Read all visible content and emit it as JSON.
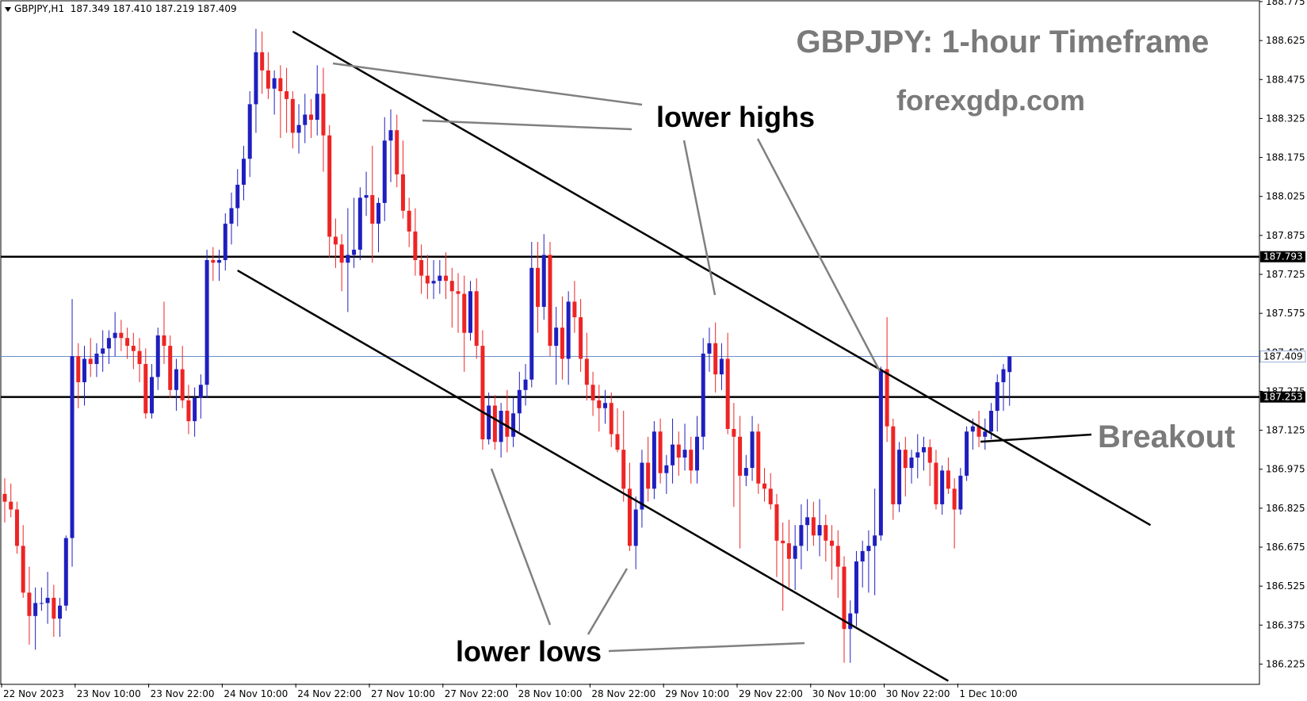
{
  "header": {
    "symbol_info": "GBPJPY,H1",
    "ohlc": "187.349 187.410 187.219 187.409"
  },
  "annotations": {
    "title": "GBPJPY: 1-hour Timeframe",
    "site": "forexgdp.com",
    "lower_highs": "lower highs",
    "lower_lows": "lower lows",
    "breakout": "Breakout"
  },
  "chart_data": {
    "type": "candlestick",
    "symbol": "GBPJPY",
    "timeframe": "H1",
    "ylim": [
      186.15,
      188.775
    ],
    "y_ticks": [
      "188.775",
      "188.625",
      "188.475",
      "188.325",
      "188.175",
      "188.025",
      "187.875",
      "187.725",
      "187.575",
      "187.425",
      "187.275",
      "187.125",
      "186.975",
      "186.825",
      "186.675",
      "186.525",
      "186.375",
      "186.225"
    ],
    "x_ticks": [
      "22 Nov 2023",
      "23 Nov 10:00",
      "23 Nov 22:00",
      "24 Nov 10:00",
      "24 Nov 22:00",
      "27 Nov 10:00",
      "27 Nov 22:00",
      "28 Nov 10:00",
      "28 Nov 22:00",
      "29 Nov 10:00",
      "29 Nov 22:00",
      "30 Nov 10:00",
      "30 Nov 22:00",
      "1 Dec 10:00"
    ],
    "horizontal_levels": [
      {
        "value": 187.793,
        "label": "187.793"
      },
      {
        "value": 187.253,
        "label": "187.253"
      }
    ],
    "current_price": {
      "value": 187.409,
      "label": "187.409"
    },
    "channel_lines": [
      {
        "name": "upper",
        "from": {
          "bar": 47,
          "price": 188.66
        },
        "to": {
          "bar": 187,
          "price": 186.76
        }
      },
      {
        "name": "lower",
        "from": {
          "bar": 38,
          "price": 187.74
        },
        "to": {
          "bar": 154,
          "price": 186.16
        }
      }
    ],
    "colors": {
      "bull": "#1f1fbf",
      "bear": "#ee2424",
      "level": "#000000",
      "current": "#6b8fc6",
      "annotation": "#7a7a7a"
    },
    "candles": [
      [
        186.88,
        186.94,
        186.77,
        186.85
      ],
      [
        186.85,
        186.92,
        186.79,
        186.82
      ],
      [
        186.82,
        186.85,
        186.65,
        186.68
      ],
      [
        186.68,
        186.76,
        186.48,
        186.5
      ],
      [
        186.5,
        186.6,
        186.3,
        186.41
      ],
      [
        186.41,
        186.52,
        186.28,
        186.46
      ],
      [
        186.46,
        186.52,
        186.43,
        186.46
      ],
      [
        186.46,
        186.58,
        186.38,
        186.48
      ],
      [
        186.48,
        186.53,
        186.33,
        186.4
      ],
      [
        186.4,
        186.48,
        186.33,
        186.45
      ],
      [
        186.45,
        186.72,
        186.43,
        186.71
      ],
      [
        186.71,
        187.63,
        186.6,
        187.41
      ],
      [
        187.41,
        187.46,
        187.21,
        187.31
      ],
      [
        187.31,
        187.45,
        187.22,
        187.4
      ],
      [
        187.4,
        187.48,
        187.33,
        187.38
      ],
      [
        187.38,
        187.46,
        187.33,
        187.42
      ],
      [
        187.42,
        187.51,
        187.35,
        187.44
      ],
      [
        187.44,
        187.51,
        187.38,
        187.48
      ],
      [
        187.48,
        187.58,
        187.41,
        187.5
      ],
      [
        187.5,
        187.55,
        187.43,
        187.48
      ],
      [
        187.48,
        187.52,
        187.4,
        187.45
      ],
      [
        187.45,
        187.5,
        187.36,
        187.43
      ],
      [
        187.43,
        187.48,
        187.31,
        187.38
      ],
      [
        187.38,
        187.44,
        187.17,
        187.19
      ],
      [
        187.19,
        187.38,
        187.17,
        187.33
      ],
      [
        187.33,
        187.52,
        187.28,
        187.49
      ],
      [
        187.49,
        187.62,
        187.38,
        187.45
      ],
      [
        187.45,
        187.49,
        187.25,
        187.28
      ],
      [
        187.28,
        187.4,
        187.2,
        187.36
      ],
      [
        187.36,
        187.45,
        187.21,
        187.24
      ],
      [
        187.24,
        187.3,
        187.11,
        187.16
      ],
      [
        187.16,
        187.29,
        187.1,
        187.25
      ],
      [
        187.25,
        187.34,
        187.17,
        187.3
      ],
      [
        187.3,
        187.82,
        187.25,
        187.78
      ],
      [
        187.78,
        187.83,
        187.7,
        187.77
      ],
      [
        187.77,
        187.82,
        187.7,
        187.78
      ],
      [
        187.78,
        187.96,
        187.74,
        187.92
      ],
      [
        187.92,
        188.04,
        187.84,
        187.98
      ],
      [
        187.98,
        188.13,
        187.91,
        188.07
      ],
      [
        188.07,
        188.22,
        188.01,
        188.17
      ],
      [
        188.17,
        188.43,
        188.1,
        188.38
      ],
      [
        188.38,
        188.67,
        188.27,
        188.58
      ],
      [
        188.58,
        188.66,
        188.42,
        188.51
      ],
      [
        188.51,
        188.58,
        188.4,
        188.44
      ],
      [
        188.44,
        188.51,
        188.34,
        188.48
      ],
      [
        188.48,
        188.53,
        188.25,
        188.43
      ],
      [
        188.43,
        188.52,
        188.27,
        188.4
      ],
      [
        188.4,
        188.43,
        188.21,
        188.27
      ],
      [
        188.27,
        188.38,
        188.19,
        188.3
      ],
      [
        188.3,
        188.42,
        188.23,
        188.34
      ],
      [
        188.34,
        188.4,
        188.25,
        188.32
      ],
      [
        188.32,
        188.53,
        188.26,
        188.42
      ],
      [
        188.42,
        188.52,
        188.12,
        188.26
      ],
      [
        188.26,
        188.3,
        187.79,
        187.87
      ],
      [
        187.87,
        187.94,
        187.75,
        187.84
      ],
      [
        187.84,
        187.88,
        187.66,
        187.77
      ],
      [
        187.77,
        187.98,
        187.58,
        187.8
      ],
      [
        187.8,
        188.02,
        187.75,
        187.82
      ],
      [
        187.82,
        188.06,
        187.78,
        188.02
      ],
      [
        188.02,
        188.12,
        187.95,
        188.03
      ],
      [
        188.03,
        188.22,
        187.77,
        187.92
      ],
      [
        187.92,
        188.02,
        187.81,
        188.0
      ],
      [
        188.0,
        188.33,
        187.93,
        188.24
      ],
      [
        188.24,
        188.36,
        188.08,
        188.28
      ],
      [
        188.28,
        188.34,
        188.06,
        188.11
      ],
      [
        188.11,
        188.24,
        187.94,
        187.97
      ],
      [
        187.97,
        188.02,
        187.83,
        187.89
      ],
      [
        187.89,
        187.98,
        187.72,
        187.78
      ],
      [
        187.78,
        187.84,
        187.65,
        187.72
      ],
      [
        187.72,
        187.8,
        187.63,
        187.69
      ],
      [
        187.69,
        187.78,
        187.63,
        187.7
      ],
      [
        187.7,
        187.78,
        187.65,
        187.72
      ],
      [
        187.72,
        187.81,
        187.63,
        187.7
      ],
      [
        187.7,
        187.75,
        187.52,
        187.66
      ],
      [
        187.66,
        187.73,
        187.5,
        187.65
      ],
      [
        187.65,
        187.72,
        187.35,
        187.5
      ],
      [
        187.5,
        187.7,
        187.47,
        187.66
      ],
      [
        187.66,
        187.71,
        187.4,
        187.45
      ],
      [
        187.45,
        187.51,
        187.05,
        187.09
      ],
      [
        187.09,
        187.27,
        187.07,
        187.22
      ],
      [
        187.22,
        187.26,
        187.05,
        187.08
      ],
      [
        187.08,
        187.23,
        187.02,
        187.2
      ],
      [
        187.2,
        187.28,
        187.04,
        187.1
      ],
      [
        187.1,
        187.25,
        187.06,
        187.19
      ],
      [
        187.19,
        187.35,
        187.12,
        187.28
      ],
      [
        187.28,
        187.38,
        187.22,
        187.32
      ],
      [
        187.32,
        187.85,
        187.29,
        187.75
      ],
      [
        187.75,
        187.85,
        187.5,
        187.6
      ],
      [
        187.6,
        187.88,
        187.55,
        187.8
      ],
      [
        187.8,
        187.85,
        187.41,
        187.45
      ],
      [
        187.45,
        187.6,
        187.3,
        187.52
      ],
      [
        187.52,
        187.64,
        187.32,
        187.4
      ],
      [
        187.4,
        187.66,
        187.3,
        187.62
      ],
      [
        187.62,
        187.7,
        187.5,
        187.56
      ],
      [
        187.56,
        187.63,
        187.35,
        187.4
      ],
      [
        187.4,
        187.5,
        187.24,
        187.3
      ],
      [
        187.3,
        187.35,
        187.18,
        187.24
      ],
      [
        187.24,
        187.3,
        187.12,
        187.21
      ],
      [
        187.21,
        187.28,
        187.15,
        187.23
      ],
      [
        187.23,
        187.27,
        187.06,
        187.11
      ],
      [
        187.11,
        187.21,
        187.04,
        187.05
      ],
      [
        187.05,
        187.2,
        186.85,
        186.9
      ],
      [
        186.9,
        187.0,
        186.66,
        186.68
      ],
      [
        186.68,
        186.87,
        186.59,
        186.82
      ],
      [
        186.82,
        187.05,
        186.75,
        187.0
      ],
      [
        187.0,
        187.1,
        186.85,
        186.9
      ],
      [
        186.9,
        187.16,
        186.86,
        187.12
      ],
      [
        187.12,
        187.17,
        186.92,
        186.96
      ],
      [
        186.96,
        187.03,
        186.88,
        186.99
      ],
      [
        186.99,
        187.17,
        186.92,
        187.07
      ],
      [
        187.07,
        187.12,
        186.95,
        187.02
      ],
      [
        187.02,
        187.15,
        186.97,
        187.05
      ],
      [
        187.05,
        187.1,
        186.92,
        186.97
      ],
      [
        186.97,
        187.18,
        186.92,
        187.1
      ],
      [
        187.1,
        187.48,
        187.05,
        187.42
      ],
      [
        187.42,
        187.52,
        187.35,
        187.46
      ],
      [
        187.46,
        187.54,
        187.27,
        187.34
      ],
      [
        187.34,
        187.46,
        187.28,
        187.4
      ],
      [
        187.4,
        187.5,
        187.11,
        187.13
      ],
      [
        187.13,
        187.23,
        186.83,
        187.1
      ],
      [
        187.1,
        187.18,
        186.67,
        186.95
      ],
      [
        186.95,
        187.03,
        186.91,
        186.98
      ],
      [
        186.98,
        187.18,
        186.93,
        187.12
      ],
      [
        187.12,
        187.15,
        186.88,
        186.92
      ],
      [
        186.92,
        186.98,
        186.85,
        186.9
      ],
      [
        186.9,
        186.96,
        186.82,
        186.84
      ],
      [
        186.84,
        186.88,
        186.56,
        186.7
      ],
      [
        186.7,
        186.77,
        186.43,
        186.69
      ],
      [
        186.69,
        186.78,
        186.52,
        186.63
      ],
      [
        186.63,
        186.76,
        186.51,
        186.68
      ],
      [
        186.68,
        186.84,
        186.59,
        186.76
      ],
      [
        186.76,
        186.86,
        186.66,
        186.79
      ],
      [
        186.79,
        186.85,
        186.68,
        186.72
      ],
      [
        186.72,
        186.86,
        186.64,
        186.76
      ],
      [
        186.76,
        186.8,
        186.62,
        186.7
      ],
      [
        186.7,
        186.76,
        186.55,
        186.68
      ],
      [
        186.68,
        186.74,
        186.48,
        186.6
      ],
      [
        186.6,
        186.64,
        186.23,
        186.36
      ],
      [
        186.36,
        186.47,
        186.23,
        186.42
      ],
      [
        186.42,
        186.66,
        186.37,
        186.62
      ],
      [
        186.62,
        186.7,
        186.52,
        186.66
      ],
      [
        186.66,
        186.74,
        186.5,
        186.68
      ],
      [
        186.68,
        186.9,
        186.49,
        186.72
      ],
      [
        186.72,
        187.37,
        186.7,
        187.36
      ],
      [
        187.36,
        187.56,
        187.08,
        187.14
      ],
      [
        187.14,
        187.17,
        186.78,
        186.84
      ],
      [
        186.84,
        187.08,
        186.81,
        187.05
      ],
      [
        187.05,
        187.1,
        186.87,
        186.98
      ],
      [
        186.98,
        187.05,
        186.92,
        187.02
      ],
      [
        187.02,
        187.11,
        186.94,
        187.04
      ],
      [
        187.04,
        187.1,
        186.97,
        187.06
      ],
      [
        187.06,
        187.09,
        186.91,
        187.0
      ],
      [
        187.0,
        187.05,
        186.82,
        186.84
      ],
      [
        186.84,
        186.99,
        186.8,
        186.97
      ],
      [
        186.97,
        187.02,
        186.88,
        186.9
      ],
      [
        186.9,
        186.94,
        186.67,
        186.82
      ],
      [
        186.82,
        186.98,
        186.8,
        186.95
      ],
      [
        186.95,
        187.14,
        186.93,
        187.12
      ],
      [
        187.12,
        187.17,
        187.05,
        187.14
      ],
      [
        187.14,
        187.2,
        187.06,
        187.1
      ],
      [
        187.1,
        187.17,
        187.05,
        187.12
      ],
      [
        187.12,
        187.23,
        187.09,
        187.2
      ],
      [
        187.2,
        187.34,
        187.12,
        187.31
      ],
      [
        187.31,
        187.38,
        187.2,
        187.36
      ],
      [
        187.349,
        187.41,
        187.219,
        187.409
      ]
    ]
  }
}
